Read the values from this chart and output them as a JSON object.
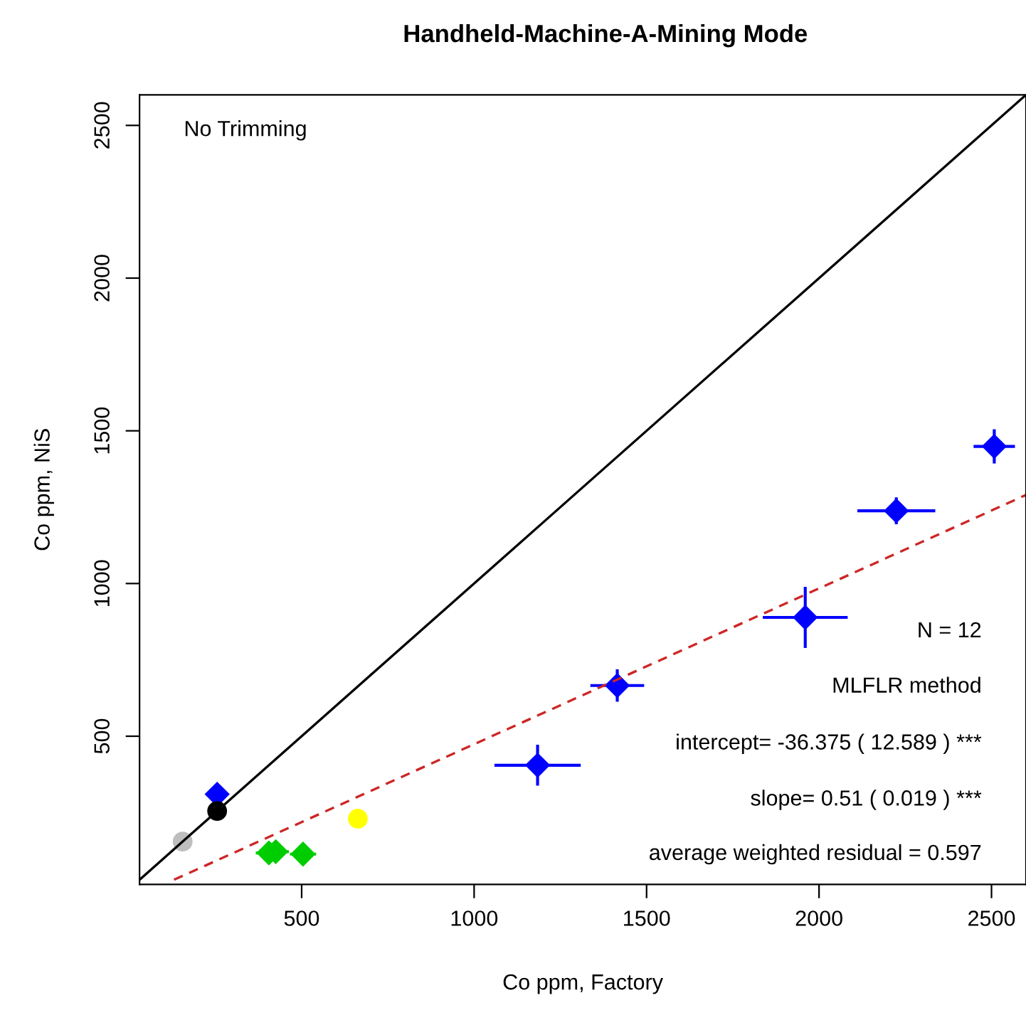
{
  "chart_data": {
    "type": "scatter",
    "title": "Handheld-Machine-A-Mining Mode",
    "xlabel": "Co ppm, Factory",
    "ylabel": "Co ppm, NiS",
    "xlim": [
      30,
      2600
    ],
    "ylim": [
      15,
      2600
    ],
    "xticks": [
      500,
      1000,
      1500,
      2000,
      2500
    ],
    "yticks": [
      500,
      1000,
      1500,
      2000,
      2500
    ],
    "grid": false,
    "legend": false,
    "series": [
      {
        "marker": "diamond",
        "color": "#0000ff",
        "x": [
          255,
          1184,
          1415,
          1960,
          2224,
          2508
        ],
        "values": [
          310,
          405,
          666,
          889,
          1238,
          1449
        ],
        "xerrors": [
          20,
          125,
          78,
          123,
          113,
          60
        ],
        "errors": [
          30,
          67,
          53,
          100,
          44,
          56
        ]
      },
      {
        "marker": "circle",
        "color": "#000000",
        "x": [
          255
        ],
        "values": [
          255
        ]
      },
      {
        "marker": "circle",
        "color": "#bebebe",
        "x": [
          155
        ],
        "values": [
          155
        ]
      },
      {
        "marker": "circle",
        "color": "#ffff00",
        "x": [
          663
        ],
        "values": [
          230
        ]
      },
      {
        "marker": "diamond",
        "color": "#00cd00",
        "x": [
          405,
          425,
          504
        ],
        "values": [
          118,
          122,
          114
        ],
        "xerrors": [
          38,
          38,
          38
        ],
        "errors": [
          10,
          10,
          10
        ]
      },
      {
        "type": "line",
        "line_style": "solid",
        "color": "#000000",
        "x": [
          30,
          2600
        ],
        "values": [
          30,
          2600
        ]
      },
      {
        "type": "line",
        "line_style": "dashed",
        "color": "#cd2626",
        "x": [
          130,
          2600
        ],
        "values": [
          30,
          1290
        ]
      }
    ],
    "annotations": [
      "No Trimming",
      "N = 12",
      "MLFLR method",
      "intercept= -36.375 ( 12.589 ) ***",
      "slope= 0.51 ( 0.019 ) ***",
      "average weighted residual = 0.597"
    ]
  }
}
